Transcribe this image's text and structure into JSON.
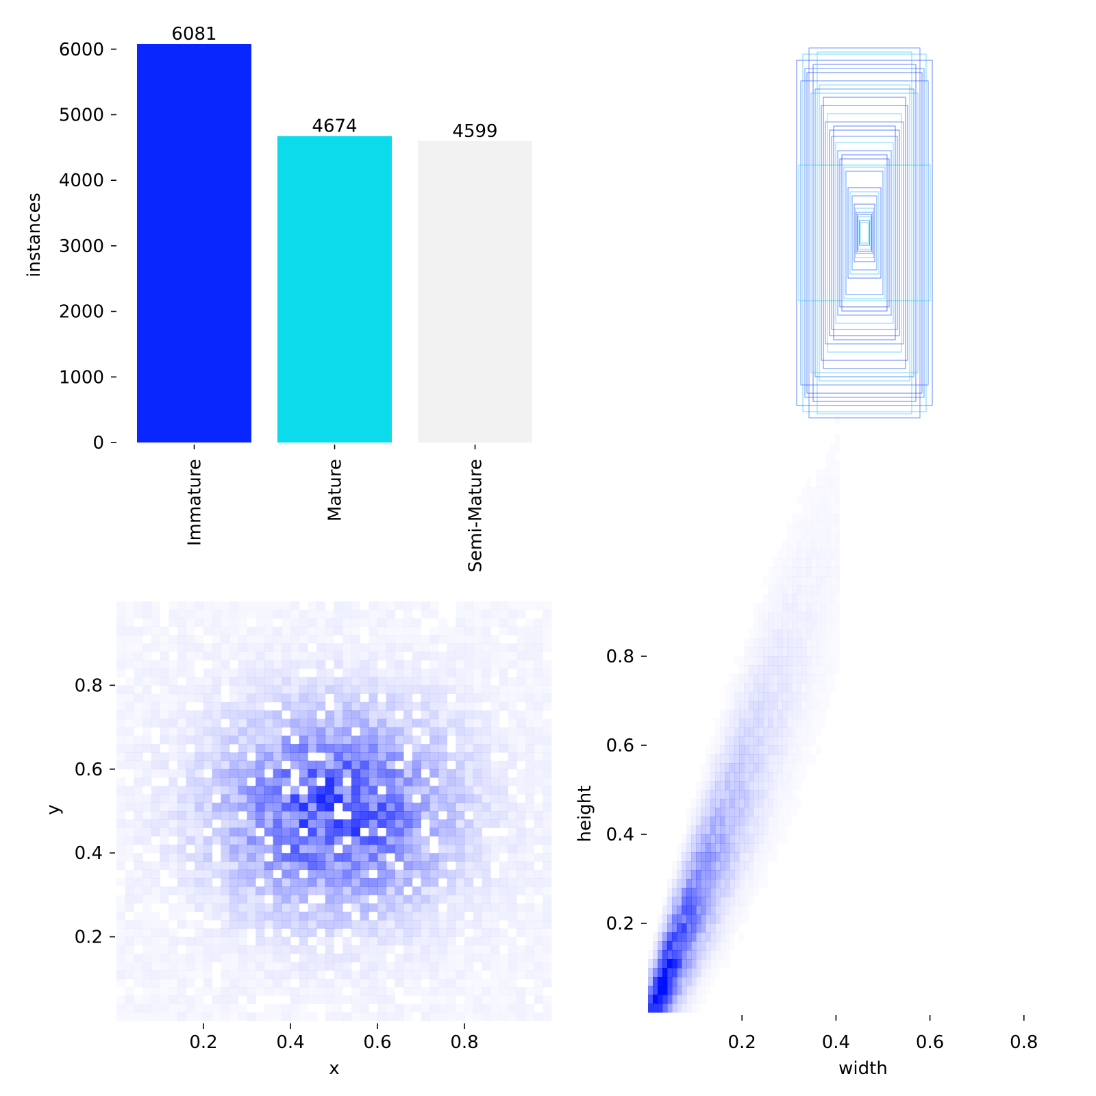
{
  "chart_data": [
    {
      "type": "bar",
      "ylabel": "instances",
      "xlabel": "",
      "categories": [
        "Immature",
        "Mature",
        "Semi-Mature"
      ],
      "values": [
        6081,
        4674,
        4599
      ],
      "data_labels": [
        "6081",
        "4674",
        "4599"
      ],
      "colors": [
        "#0a26ff",
        "#0bdbeb",
        "#f2f2f2"
      ],
      "ylim": [
        0,
        6081
      ],
      "yticks": [
        0,
        1000,
        2000,
        3000,
        4000,
        5000,
        6000
      ],
      "ytick_labels": [
        "0",
        "1000",
        "2000",
        "3000",
        "4000",
        "5000",
        "6000"
      ],
      "grid": false
    },
    {
      "type": "other",
      "description_kind": "box-outlines",
      "box_colors": [
        "#1f4bff",
        "#38c8ee",
        "#2a66ff"
      ],
      "boxes_wh": [
        [
          0.33,
          0.84
        ],
        [
          0.3,
          0.87
        ],
        [
          0.27,
          0.9
        ],
        [
          0.25,
          0.82
        ],
        [
          0.23,
          0.88
        ],
        [
          0.31,
          0.74
        ],
        [
          0.28,
          0.78
        ],
        [
          0.22,
          0.72
        ],
        [
          0.24,
          0.7
        ],
        [
          0.2,
          0.66
        ],
        [
          0.32,
          0.33
        ],
        [
          0.19,
          0.54
        ],
        [
          0.17,
          0.5
        ],
        [
          0.18,
          0.58
        ],
        [
          0.16,
          0.47
        ],
        [
          0.15,
          0.52
        ],
        [
          0.14,
          0.44
        ],
        [
          0.13,
          0.4
        ],
        [
          0.12,
          0.36
        ],
        [
          0.1,
          0.32
        ],
        [
          0.09,
          0.3
        ],
        [
          0.08,
          0.22
        ],
        [
          0.07,
          0.2
        ],
        [
          0.06,
          0.18
        ],
        [
          0.05,
          0.14
        ],
        [
          0.045,
          0.12
        ],
        [
          0.04,
          0.1
        ],
        [
          0.035,
          0.09
        ],
        [
          0.03,
          0.08
        ],
        [
          0.025,
          0.06
        ],
        [
          0.21,
          0.62
        ],
        [
          0.26,
          0.68
        ],
        [
          0.29,
          0.8
        ],
        [
          0.11,
          0.38
        ],
        [
          0.02,
          0.05
        ]
      ]
    },
    {
      "type": "heatmap",
      "xlabel": "x",
      "ylabel": "y",
      "xlim": [
        0,
        1
      ],
      "ylim": [
        0,
        1
      ],
      "xticks": [
        0.2,
        0.4,
        0.6,
        0.8
      ],
      "xtick_labels": [
        "0.2",
        "0.4",
        "0.6",
        "0.8"
      ],
      "yticks": [
        0.2,
        0.4,
        0.6,
        0.8
      ],
      "ytick_labels": [
        "0.2",
        "0.4",
        "0.6",
        "0.8"
      ],
      "color": "#0010ff",
      "peak": [
        0.5,
        0.5
      ],
      "spread": [
        0.17,
        0.15
      ],
      "grid": false
    },
    {
      "type": "heatmap",
      "xlabel": "width",
      "ylabel": "height",
      "xlim": [
        0,
        1
      ],
      "ylim": [
        0,
        1
      ],
      "xticks": [
        0.2,
        0.4,
        0.6,
        0.8
      ],
      "xtick_labels": [
        "0.2",
        "0.4",
        "0.6",
        "0.8"
      ],
      "yticks": [
        0.2,
        0.4,
        0.6,
        0.8
      ],
      "ytick_labels": [
        "0.2",
        "0.4",
        "0.6",
        "0.8"
      ],
      "color": "#0010ff",
      "peak": [
        0.03,
        0.06
      ],
      "trend_slope": 2.6,
      "grid": false
    }
  ]
}
